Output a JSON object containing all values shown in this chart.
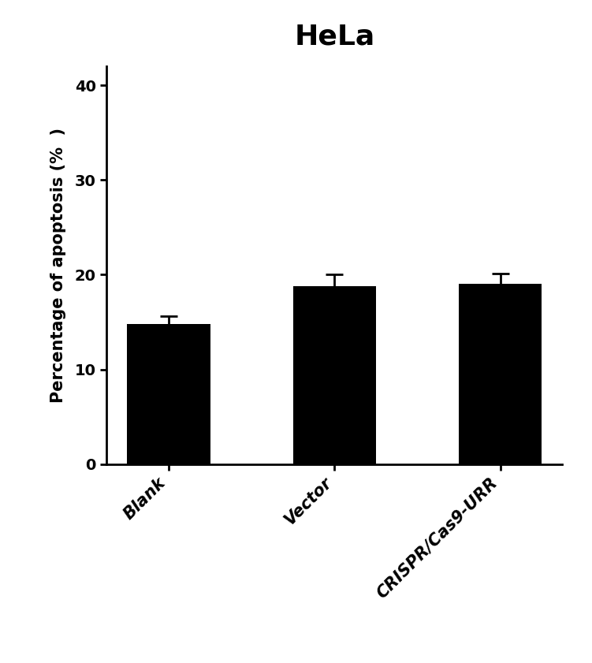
{
  "title": "HeLa",
  "title_fontsize": 26,
  "title_fontweight": "bold",
  "categories": [
    "Blank",
    "Vector",
    "CRISPR/Cas9-URR"
  ],
  "values": [
    14.8,
    18.8,
    19.0
  ],
  "errors": [
    0.8,
    1.2,
    1.1
  ],
  "bar_color": "#000000",
  "bar_width": 0.5,
  "ylabel": "Percentage of apoptosis (%  )",
  "ylabel_fontsize": 15,
  "ylabel_fontweight": "bold",
  "ylim": [
    0,
    42
  ],
  "yticks": [
    0,
    10,
    20,
    30,
    40
  ],
  "ytick_fontsize": 14,
  "xtick_fontsize": 15,
  "error_capsize": 8,
  "error_linewidth": 2,
  "error_color": "#000000",
  "spine_linewidth": 2,
  "background_color": "#ffffff",
  "figsize": [
    7.51,
    8.41
  ]
}
